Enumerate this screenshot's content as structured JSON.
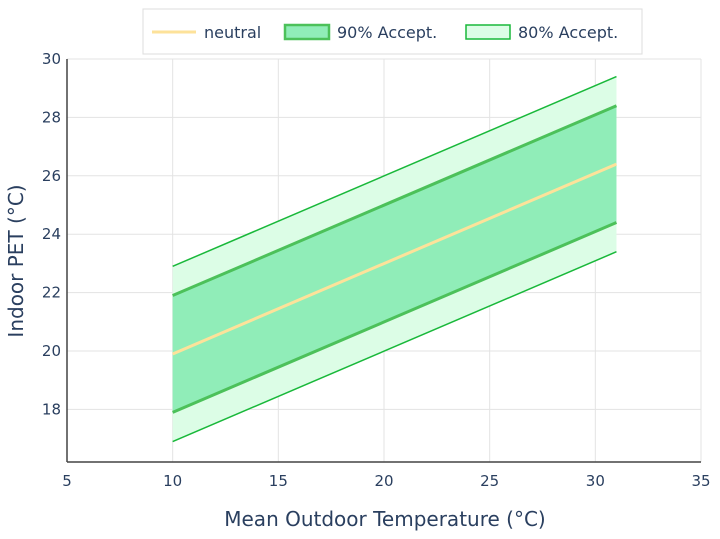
{
  "chart_data": {
    "type": "line",
    "xlabel": "Mean Outdoor Temperature (°C)",
    "ylabel": "Indoor PET (°C)",
    "xlim": [
      5,
      35
    ],
    "ylim": [
      16.2,
      30
    ],
    "x_ticks": [
      5,
      10,
      15,
      20,
      25,
      30,
      35
    ],
    "y_ticks": [
      18,
      20,
      22,
      24,
      26,
      28,
      30
    ],
    "grid": true,
    "legend_position": "top",
    "x": [
      10,
      31
    ],
    "series": [
      {
        "name": "neutral",
        "kind": "line",
        "color": "#fde29a",
        "values": [
          19.9,
          26.4
        ]
      },
      {
        "name": "90% Accept.",
        "kind": "band",
        "color": "#4cc15a",
        "fill": "#90edb8",
        "upper": [
          21.9,
          28.4
        ],
        "lower": [
          17.9,
          24.4
        ]
      },
      {
        "name": "80% Accept.",
        "kind": "band",
        "color": "#19b83a",
        "fill": "#dcfde6",
        "upper": [
          22.9,
          29.4
        ],
        "lower": [
          16.9,
          23.4
        ]
      }
    ]
  }
}
